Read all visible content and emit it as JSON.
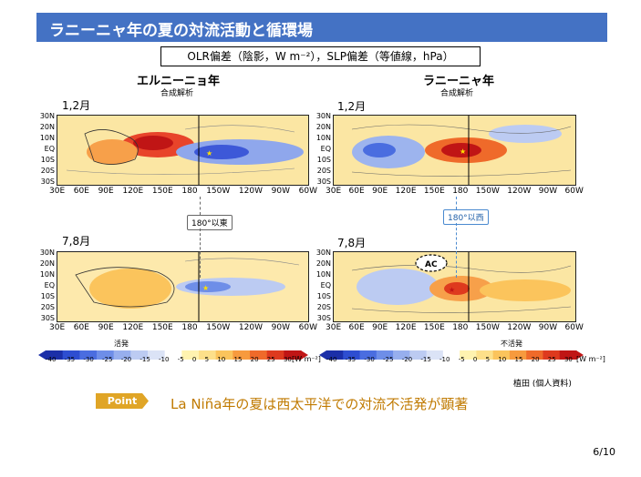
{
  "title": "ラニーニャ年の夏の対流活動と循環場",
  "legend_box": "OLR偏差（陰影，W m⁻²），SLP偏差（等値線，hPa）",
  "left_col": {
    "heading": "エルニーニョ年",
    "sub": "合成解析"
  },
  "right_col": {
    "heading": "ラニーニャ年",
    "sub": "合成解析"
  },
  "months": {
    "top": "1,2月",
    "bottom": "7,8月"
  },
  "lat_labels": [
    "30N",
    "20N",
    "10N",
    "EQ",
    "10S",
    "20S",
    "30S"
  ],
  "lon_labels": [
    "30E",
    "60E",
    "90E",
    "120E",
    "150E",
    "180",
    "150W",
    "120W",
    "90W",
    "60W"
  ],
  "callout_left": "180°以東",
  "callout_right": "180°以西",
  "ac_label": "AC",
  "colorbar": {
    "ticks": [
      "-40",
      "-35",
      "-30",
      "-25",
      "-20",
      "-15",
      "-10",
      "-5",
      "0",
      "5",
      "10",
      "15",
      "20",
      "25",
      "30"
    ],
    "unit": "[W m⁻²]",
    "left_label": "活発",
    "right_label": "不活発",
    "colors": [
      "#1b2fa8",
      "#2e4ed1",
      "#4a6de0",
      "#6e8ee8",
      "#97afee",
      "#bccbf2",
      "#dbe3f6",
      "#ffffff",
      "#fff3b0",
      "#fde08a",
      "#fbc45c",
      "#f79a3e",
      "#ef6a2a",
      "#de3a1e",
      "#c01515"
    ]
  },
  "source": "植田 (個人資料)",
  "point": {
    "badge": "Point",
    "text": "La Niña年の夏は西太平洋での対流不活発が顕著"
  },
  "page": "6/10"
}
